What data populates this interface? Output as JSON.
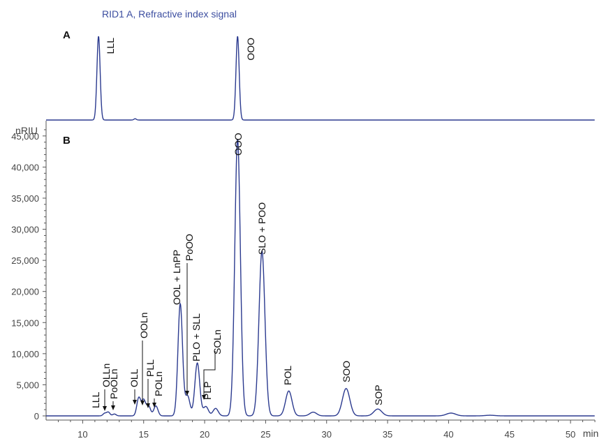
{
  "signal_title": "RID1 A, Refractive index signal",
  "panel_a_label": "A",
  "panel_b_label": "B",
  "chart_data": {
    "type": "line",
    "y_unit": "nRIU",
    "x_unit": "min",
    "xlim": [
      7,
      52
    ],
    "ylim": [
      0,
      47000
    ],
    "x_ticks": [
      10,
      15,
      20,
      25,
      30,
      35,
      40,
      45,
      50
    ],
    "y_ticks": [
      0,
      5000,
      10000,
      15000,
      20000,
      25000,
      30000,
      35000,
      40000,
      45000
    ],
    "y_tick_labels": [
      "0",
      "5,000",
      "10,000",
      "15,000",
      "20,000",
      "25,000",
      "30,000",
      "35,000",
      "40,000",
      "45,000"
    ],
    "panels": [
      {
        "panel": "A",
        "peaks": [
          {
            "label": "LLL",
            "rt": 11.3,
            "height": 1.0
          },
          {
            "label": "OOO",
            "rt": 22.7,
            "height": 1.0
          }
        ]
      },
      {
        "panel": "B",
        "peaks": [
          {
            "label": "LLL",
            "rt": 11.8,
            "height": 400
          },
          {
            "label": "OLLn",
            "rt": 12.1,
            "height": 600
          },
          {
            "label": "PoOLn",
            "rt": 12.6,
            "height": 300
          },
          {
            "label": "OLL",
            "rt": 14.6,
            "height": 2900
          },
          {
            "label": "OOLn",
            "rt": 15.0,
            "height": 2500
          },
          {
            "label": "PLL",
            "rt": 15.4,
            "height": 1600
          },
          {
            "label": "POLn",
            "rt": 16.0,
            "height": 1600
          },
          {
            "label": "OOL + LnPP",
            "rt": 18.0,
            "height": 18000
          },
          {
            "label": "PoOO",
            "rt": 18.6,
            "height": 3200
          },
          {
            "label": "PLO + SLL",
            "rt": 19.4,
            "height": 8500
          },
          {
            "label": "PLP",
            "rt": 20.1,
            "height": 1500
          },
          {
            "label": "SOLn",
            "rt": 20.9,
            "height": 1200
          },
          {
            "label": "OOO",
            "rt": 22.7,
            "height": 44500
          },
          {
            "label": "SLO + POO",
            "rt": 24.7,
            "height": 26500
          },
          {
            "label": "POL",
            "rt": 26.9,
            "height": 4000
          },
          {
            "label": "SOO",
            "rt": 31.6,
            "height": 4400
          },
          {
            "label": "SOP",
            "rt": 34.2,
            "height": 1100
          }
        ],
        "minor_peaks": [
          {
            "rt": 28.9,
            "height": 600
          },
          {
            "rt": 40.2,
            "height": 450
          },
          {
            "rt": 43.4,
            "height": 100
          }
        ]
      }
    ]
  }
}
